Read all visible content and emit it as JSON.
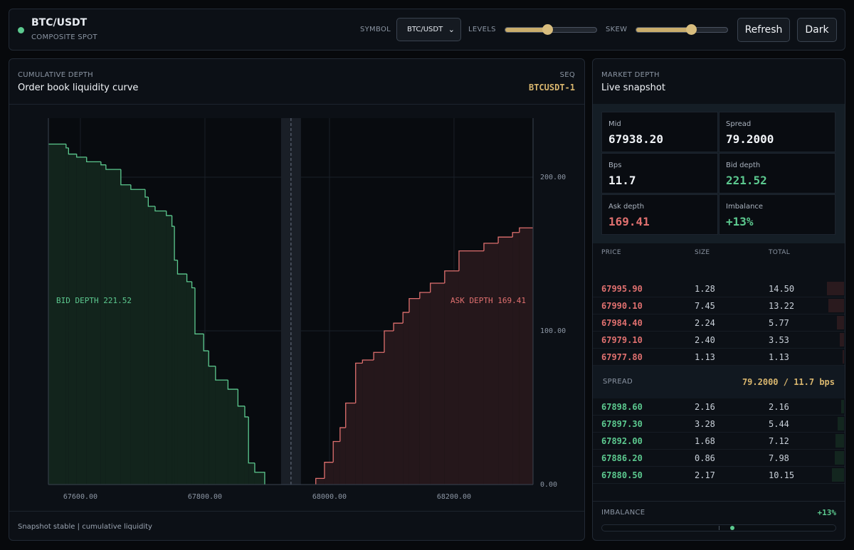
{
  "header": {
    "symbol": "BTC/USDT",
    "subtitle": "COMPOSITE SPOT",
    "symbol_label": "SYMBOL",
    "symbol_option": "BTC/USDT",
    "levels_label": "LEVELS",
    "skew_label": "SKEW",
    "refresh": "Refresh",
    "theme": "Dark"
  },
  "depth_panel": {
    "kicker": "CUMULATIVE DEPTH",
    "title": "Order book liquidity curve",
    "seq_label": "SEQ",
    "seq": "BTCUSDT-1",
    "footer": "Snapshot stable | cumulative liquidity"
  },
  "chart_data": {
    "type": "depth",
    "mid": 67938.2,
    "xlim": [
      67548.6,
      68326.9
    ],
    "ylim": [
      0,
      238.4
    ],
    "xticks": [
      {
        "value": 67600,
        "label": "67600.00"
      },
      {
        "value": 67800,
        "label": "67800.00"
      },
      {
        "value": 68000,
        "label": "68000.00"
      },
      {
        "value": 68200,
        "label": "68200.00"
      }
    ],
    "yticks": [
      {
        "value": 0,
        "label": "0.00"
      },
      {
        "value": 100,
        "label": "100.00"
      },
      {
        "value": 200,
        "label": "200.00"
      }
    ],
    "bid_label": "BID DEPTH 221.52",
    "ask_label": "ASK DEPTH 169.41",
    "bids": {
      "color": "#5cc98f",
      "x": [
        67549,
        67577,
        67581,
        67594,
        67610,
        67633,
        67641,
        67665,
        67681,
        67704,
        67709,
        67720,
        67738,
        67747,
        67751,
        67756,
        67771,
        67779,
        67784,
        67798,
        67806,
        67817,
        67837,
        67853,
        67864,
        67870,
        67880
      ],
      "values": [
        221.5,
        219,
        215,
        213,
        210,
        208,
        205,
        195,
        192,
        187,
        181,
        178,
        175,
        168,
        146,
        137,
        132,
        128,
        98,
        87,
        77,
        68,
        62,
        51,
        44,
        14,
        8
      ]
    },
    "asks": {
      "color": "#e0706f",
      "x": [
        67978,
        67992,
        68006,
        68017,
        68026,
        68042,
        68053,
        68071,
        68088,
        68103,
        68118,
        68128,
        68145,
        68162,
        68185,
        68208,
        68248,
        68271,
        68294,
        68305
      ],
      "values": [
        4,
        14.5,
        28,
        37,
        53,
        79,
        81,
        86,
        100,
        105,
        112,
        121,
        125,
        131,
        139,
        152,
        157,
        161,
        164,
        167
      ]
    }
  },
  "snapshot": {
    "kicker": "MARKET DEPTH",
    "title": "Live snapshot",
    "stats": [
      {
        "label": "Mid",
        "value": "67938.20"
      },
      {
        "label": "Spread",
        "value": "79.2000"
      },
      {
        "label": "Bps",
        "value": "11.7"
      },
      {
        "label": "Bid depth",
        "value": "221.52"
      },
      {
        "label": "Ask depth",
        "value": "169.41"
      },
      {
        "label": "Imbalance",
        "value": "+13%"
      }
    ]
  },
  "book": {
    "headers": [
      "PRICE",
      "SIZE",
      "TOTAL"
    ],
    "asks": [
      [
        "67995.90",
        "1.28",
        "14.50"
      ],
      [
        "67990.10",
        "7.45",
        "13.22"
      ],
      [
        "67984.40",
        "2.24",
        "5.77"
      ],
      [
        "67979.10",
        "2.40",
        "3.53"
      ],
      [
        "67977.80",
        "1.13",
        "1.13"
      ]
    ],
    "spread_label": "SPREAD",
    "spread": "79.2000 / 11.7 bps",
    "bids": [
      [
        "67898.60",
        "2.16",
        "2.16"
      ],
      [
        "67897.30",
        "3.28",
        "5.44"
      ],
      [
        "67892.00",
        "1.68",
        "7.12"
      ],
      [
        "67886.20",
        "0.86",
        "7.98"
      ],
      [
        "67880.50",
        "2.17",
        "10.15"
      ]
    ]
  },
  "imbalance": {
    "label": "IMBALANCE",
    "value": "+13%"
  }
}
